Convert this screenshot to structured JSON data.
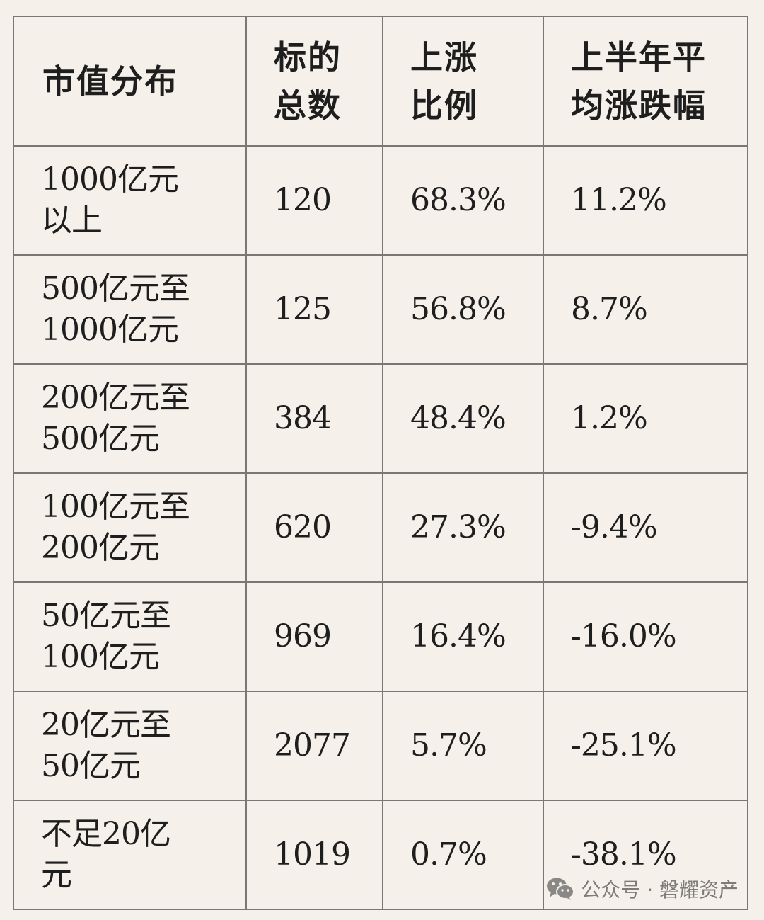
{
  "table": {
    "headers": [
      "市值分布",
      "标的\n总数",
      "上涨\n比例",
      "上半年平\n均涨跌幅"
    ],
    "rows": [
      {
        "cap": "1000亿元\n以上",
        "count": "120",
        "up_ratio": "68.3%",
        "avg_change": "11.2%"
      },
      {
        "cap": "500亿元至\n1000亿元",
        "count": "125",
        "up_ratio": "56.8%",
        "avg_change": "8.7%"
      },
      {
        "cap": "200亿元至\n500亿元",
        "count": "384",
        "up_ratio": "48.4%",
        "avg_change": "1.2%"
      },
      {
        "cap": "100亿元至\n200亿元",
        "count": "620",
        "up_ratio": "27.3%",
        "avg_change": "-9.4%"
      },
      {
        "cap": "50亿元至\n100亿元",
        "count": "969",
        "up_ratio": "16.4%",
        "avg_change": "-16.0%"
      },
      {
        "cap": "20亿元至\n50亿元",
        "count": "2077",
        "up_ratio": "5.7%",
        "avg_change": "-25.1%"
      },
      {
        "cap": "不足20亿\n元",
        "count": "1019",
        "up_ratio": "0.7%",
        "avg_change": "-38.1%"
      }
    ]
  },
  "watermark": {
    "text": "公众号 · 磐耀资产",
    "icon": "wechat-icon"
  }
}
